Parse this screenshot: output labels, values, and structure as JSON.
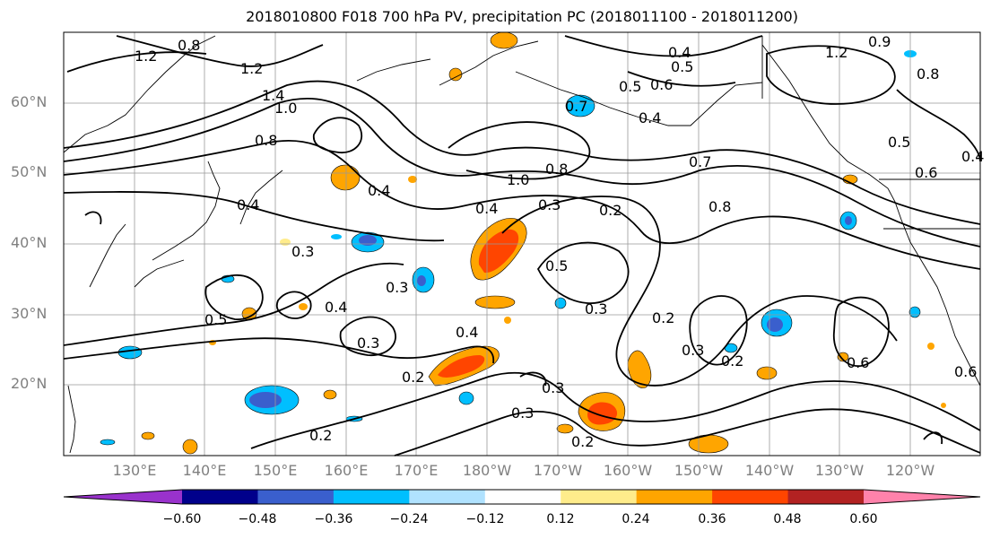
{
  "title": "2018010800 F018 700 hPa PV, precipitation PC (2018011100 - 2018011200)",
  "lat_labels": [
    "60°N",
    "50°N",
    "40°N",
    "30°N",
    "20°N"
  ],
  "lon_labels": [
    "130°E",
    "140°E",
    "150°E",
    "160°E",
    "170°E",
    "180°W",
    "170°W",
    "160°W",
    "150°W",
    "140°W",
    "130°W",
    "120°W"
  ],
  "colorbar": {
    "ticks": [
      "−0.60",
      "−0.48",
      "−0.36",
      "−0.24",
      "−0.12",
      "0.12",
      "0.24",
      "0.36",
      "0.48",
      "0.60"
    ],
    "colors": [
      "#9932cc",
      "#00008b",
      "#3a5fcd",
      "#00bfff",
      "#b0e2ff",
      "#ffffff",
      "#ffec8b",
      "#ffa500",
      "#ff4500",
      "#b22222",
      "#ff82ab"
    ]
  },
  "contour_labels": [
    "1.2",
    "0.8",
    "1.2",
    "1.4",
    "1.0",
    "0.8",
    "0.4",
    "0.5",
    "0.6",
    "0.7",
    "0.9",
    "1.2",
    "0.8",
    "0.5",
    "0.4",
    "1.0",
    "0.8",
    "0.6",
    "0.4",
    "0.3",
    "0.4",
    "0.3",
    "0.2",
    "0.5",
    "0.4",
    "0.3",
    "0.5",
    "0.3",
    "0.4",
    "0.3",
    "0.2",
    "0.3",
    "0.2",
    "0.3",
    "0.2",
    "0.6",
    "0.3",
    "0.2",
    "0.2",
    "0.4",
    "0.8",
    "0.5",
    "0.7",
    "0.4",
    "0.6"
  ]
}
